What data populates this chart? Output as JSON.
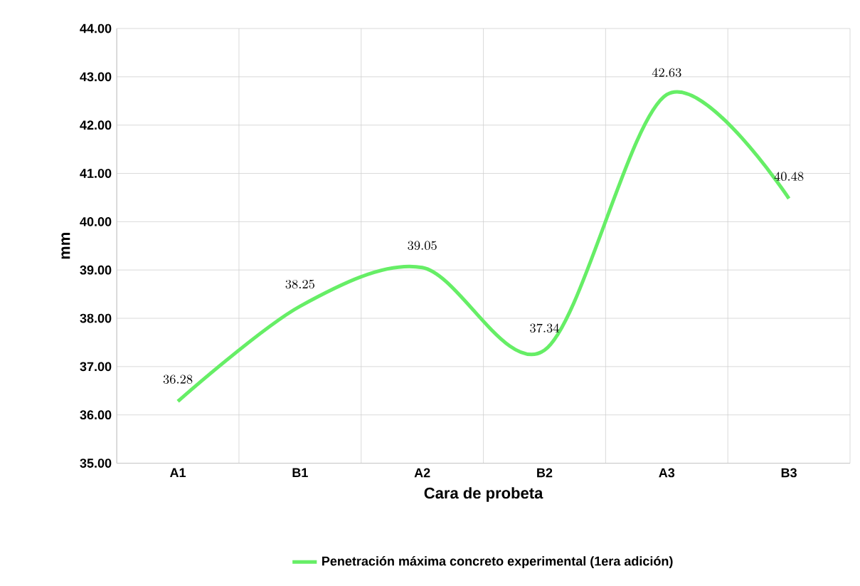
{
  "chart_data": {
    "type": "line",
    "xlabel": "Cara de probeta",
    "ylabel": "mm",
    "categories": [
      "A1",
      "B1",
      "A2",
      "B2",
      "A3",
      "B3"
    ],
    "series": [
      {
        "name": "Penetración máxima concreto experimental (1era adición)",
        "color": "#66ee66",
        "values": [
          36.28,
          38.25,
          39.05,
          37.34,
          42.63,
          40.48
        ]
      }
    ],
    "ylim": [
      35,
      44
    ],
    "yticks": [
      {
        "value": 35,
        "label": "35.00"
      },
      {
        "value": 36,
        "label": "36.00"
      },
      {
        "value": 37,
        "label": "37.00"
      },
      {
        "value": 38,
        "label": "38.00"
      },
      {
        "value": 39,
        "label": "39.00"
      },
      {
        "value": 40,
        "label": "40.00"
      },
      {
        "value": 41,
        "label": "41.00"
      },
      {
        "value": 42,
        "label": "42.00"
      },
      {
        "value": 43,
        "label": "43.00"
      },
      {
        "value": 44,
        "label": "44.00"
      }
    ],
    "grid": true,
    "legend": "bottom",
    "data_labels": true,
    "marker": "none",
    "line_style": "solid"
  }
}
